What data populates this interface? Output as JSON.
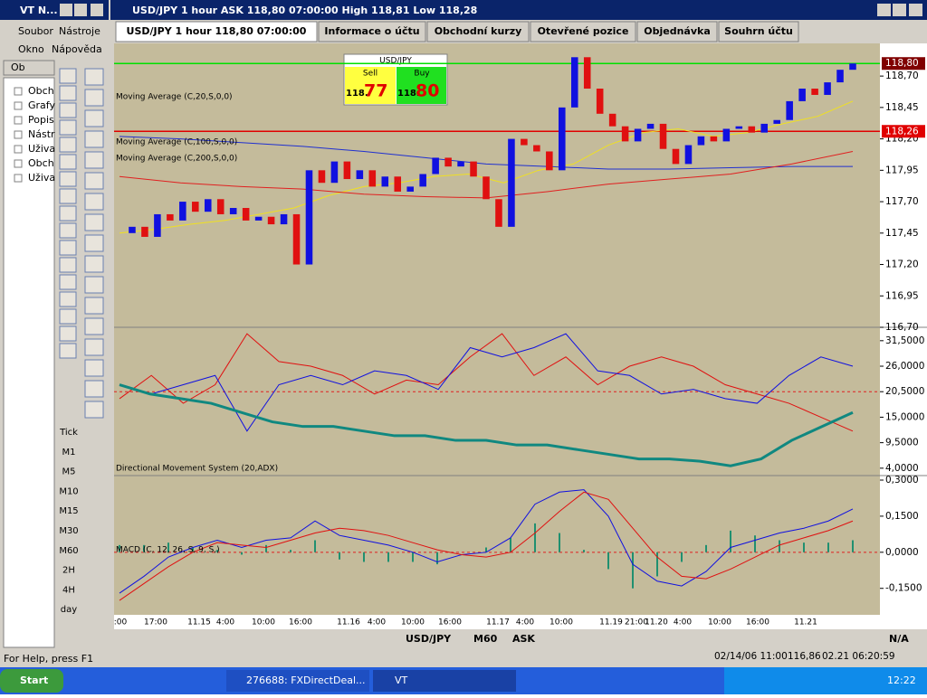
{
  "left_window": {
    "title": "VT N...",
    "menu": [
      "Soubor",
      "Nástroje",
      "Okno",
      "Nápověda"
    ],
    "tab": "Ob",
    "tree": [
      "Obch",
      "Grafy",
      "Popis",
      "Nástr",
      "Uživa",
      "Obch",
      "Uživa"
    ],
    "timeframes": [
      "Tick",
      "M1",
      "M5",
      "M10",
      "M15",
      "M30",
      "M60",
      "2H",
      "4H",
      "day"
    ],
    "status": "For Help, press F1"
  },
  "chart_window": {
    "title": "USD/JPY 1 hour ASK 118,80 07:00:00 High 118,81 Low 118,28",
    "tabs": [
      "USD/JPY 1 hour 118,80 07:00:00",
      "Informace o účtu",
      "Obchodní kurzy",
      "Otevřené pozice",
      "Objednávka",
      "Souhrn účtu"
    ],
    "ticket": {
      "symbol": "USD/JPY",
      "sell_label": "Sell",
      "buy_label": "Buy",
      "sell_big": "118.",
      "sell_pips": "77",
      "buy_big": "118.",
      "buy_pips": "80"
    },
    "price": {
      "type": "candlestick",
      "closes": [
        117.45,
        117.5,
        117.42,
        117.6,
        117.55,
        117.7,
        117.62,
        117.72,
        117.6,
        117.65,
        117.55,
        117.58,
        117.52,
        117.6,
        117.2,
        117.95,
        117.85,
        118.02,
        117.88,
        117.95,
        117.82,
        117.9,
        117.78,
        117.82,
        117.92,
        118.05,
        117.98,
        118.02,
        117.9,
        117.72,
        117.5,
        118.2,
        118.15,
        118.1,
        117.95,
        118.45,
        118.85,
        118.6,
        118.4,
        118.3,
        118.18,
        118.28,
        118.32,
        118.12,
        118.0,
        118.15,
        118.22,
        118.18,
        118.28,
        118.3,
        118.25,
        118.32,
        118.35,
        118.5,
        118.6,
        118.55,
        118.65,
        118.75,
        118.8
      ],
      "up_color": "#1010e0",
      "down_color": "#e01010",
      "ylim": [
        116.7,
        118.96
      ],
      "yticks": [
        {
          "value": 118.7,
          "label": "118,70"
        },
        {
          "value": 118.45,
          "label": "118,45"
        },
        {
          "value": 118.2,
          "label": "118,20"
        },
        {
          "value": 117.95,
          "label": "117,95"
        },
        {
          "value": 117.7,
          "label": "117,70"
        },
        {
          "value": 117.45,
          "label": "117,45"
        },
        {
          "value": 117.2,
          "label": "117,20"
        },
        {
          "value": 116.95,
          "label": "116,95"
        },
        {
          "value": 116.7,
          "label": "116,70"
        }
      ],
      "markers": [
        {
          "value": 118.8,
          "label": "118,80",
          "color": "#00e000",
          "box": "#800000"
        },
        {
          "value": 118.26,
          "label": "118,26",
          "color": "#e00000",
          "box": "#e00000"
        }
      ],
      "indicators": [
        {
          "name": "Moving Average (C,20,S,0,0)",
          "color": "#f0e020",
          "values": [
            117.45,
            117.48,
            117.52,
            117.55,
            117.6,
            117.65,
            117.75,
            117.82,
            117.85,
            117.9,
            117.92,
            117.85,
            117.95,
            118.0,
            118.15,
            118.25,
            118.28,
            118.22,
            118.25,
            118.32,
            118.38,
            118.5
          ]
        },
        {
          "name": "Moving Average (C,100,S,0,0)",
          "color": "#2030d0",
          "values": [
            118.22,
            118.2,
            118.17,
            118.14,
            118.1,
            118.05,
            118.0,
            117.98,
            117.96,
            117.96,
            117.97,
            117.98,
            117.98
          ]
        },
        {
          "name": "Moving Average (C,200,S,0,0)",
          "color": "#e02020",
          "values": [
            117.9,
            117.85,
            117.82,
            117.8,
            117.76,
            117.74,
            117.73,
            117.78,
            117.84,
            117.88,
            117.92,
            118.0,
            118.1
          ]
        }
      ]
    },
    "dms": {
      "name": "Directional Movement System (20,ADX)",
      "ylim": [
        2.6,
        34.0
      ],
      "yticks": [
        {
          "value": 31.5,
          "label": "31,5000"
        },
        {
          "value": 26,
          "label": "26,0000"
        },
        {
          "value": 20.5,
          "label": "20,5000"
        },
        {
          "value": 15,
          "label": "15,0000"
        },
        {
          "value": 9.5,
          "label": "9,5000"
        },
        {
          "value": 4,
          "label": "4,0000"
        }
      ],
      "level": 20.5,
      "series": [
        {
          "color": "#e01010",
          "width": 1,
          "values": [
            19,
            24,
            18,
            22,
            33,
            27,
            26,
            24,
            20,
            23,
            22,
            28,
            33,
            24,
            28,
            22,
            26,
            28,
            26,
            22,
            20,
            18,
            15,
            12
          ]
        },
        {
          "color": "#1010e0",
          "width": 1,
          "values": [
            22,
            20,
            22,
            24,
            12,
            22,
            24,
            22,
            25,
            24,
            21,
            30,
            28,
            30,
            33,
            25,
            24,
            20,
            21,
            19,
            18,
            24,
            28,
            26
          ]
        },
        {
          "color": "#108880",
          "width": 3,
          "values": [
            22,
            20,
            19,
            18,
            16,
            14,
            13,
            13,
            12,
            11,
            11,
            10,
            10,
            9,
            9,
            8,
            7,
            6,
            6,
            5.5,
            4.5,
            6,
            10,
            13,
            16
          ]
        }
      ]
    },
    "macd": {
      "name": "MACD (C, 12, 26, S, 9, S,)",
      "ylim": [
        -0.26,
        0.315
      ],
      "yticks": [
        {
          "value": 0.3,
          "label": "0,3000"
        },
        {
          "value": 0.15,
          "label": "0,1500"
        },
        {
          "value": 0,
          "label": "0,0000"
        },
        {
          "value": -0.15,
          "label": "-0,1500"
        }
      ],
      "level": 0,
      "series": [
        {
          "color": "#1010e0",
          "width": 1,
          "values": [
            -0.17,
            -0.1,
            -0.02,
            0.02,
            0.05,
            0.02,
            0.05,
            0.06,
            0.13,
            0.07,
            0.05,
            0.03,
            0,
            -0.04,
            -0.01,
            0.0,
            0.06,
            0.2,
            0.25,
            0.26,
            0.15,
            -0.05,
            -0.12,
            -0.14,
            -0.08,
            0.02,
            0.05,
            0.08,
            0.1,
            0.13,
            0.18
          ]
        },
        {
          "color": "#e01010",
          "width": 1,
          "values": [
            -0.2,
            -0.13,
            -0.06,
            0,
            0.04,
            0.03,
            0.02,
            0.05,
            0.08,
            0.1,
            0.09,
            0.07,
            0.04,
            0.01,
            -0.01,
            -0.02,
            0.0,
            0.08,
            0.17,
            0.25,
            0.22,
            0.1,
            -0.02,
            -0.1,
            -0.11,
            -0.07,
            -0.02,
            0.03,
            0.06,
            0.09,
            0.13
          ]
        }
      ],
      "histogram_color": "#209070",
      "histogram": [
        0.03,
        0.03,
        0.04,
        0.02,
        0.01,
        -0.01,
        0.03,
        0.01,
        0.05,
        -0.03,
        -0.04,
        -0.04,
        -0.04,
        -0.05,
        0,
        0.02,
        0.06,
        0.12,
        0.08,
        0.01,
        -0.07,
        -0.15,
        -0.1,
        -0.04,
        0.03,
        0.09,
        0.07,
        0.05,
        0.04,
        0.04,
        0.05
      ]
    },
    "xlabels": [
      ":00",
      "17:00",
      "11.15",
      "4:00",
      "10:00",
      "16:00",
      "11.16",
      "4:00",
      "10:00",
      "16:00",
      "11.17",
      "4:00",
      "10:00",
      "11.19",
      "21:00",
      "11.20",
      "4:00",
      "10:00",
      "16:00",
      "11.21"
    ],
    "toolbar": [
      "USD/JPY",
      "M60",
      "ASK",
      "N/A"
    ],
    "status": [
      "02/14/06 11:00",
      "116,86",
      "02.21 06:20:59"
    ]
  },
  "taskbar": {
    "start": "Start",
    "tasks": [
      "276688: FXDirectDeal...",
      "VT"
    ],
    "clock": "12:22"
  }
}
